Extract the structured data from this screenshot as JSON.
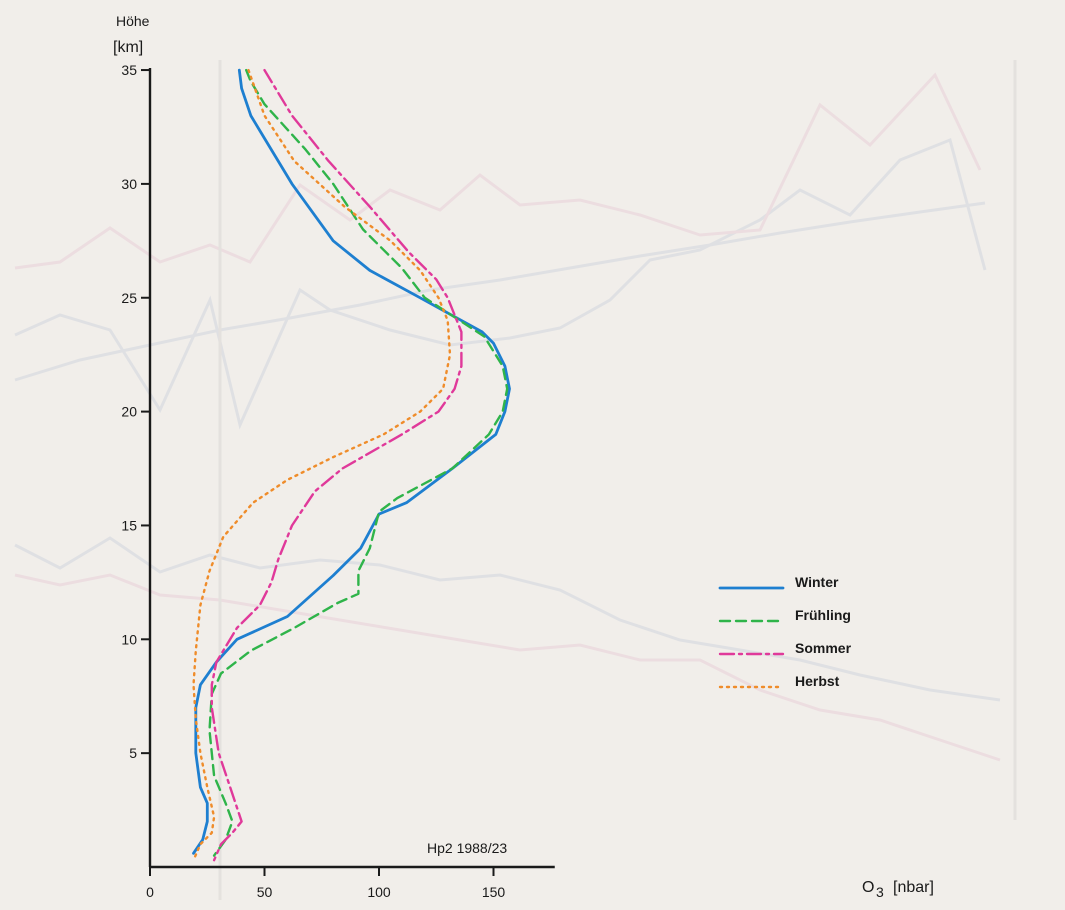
{
  "chart_data": {
    "type": "line",
    "orientation": "vertical-profile",
    "caption": "Hp2  1988/23",
    "ylabel_top": "Höhe",
    "ylabel_unit": "[km]",
    "xlabel_symbol": "O",
    "xlabel_subscript": "3",
    "xlabel_unit": "[nbar]",
    "xlim": [
      0,
      175
    ],
    "ylim": [
      0,
      35
    ],
    "x_ticks": [
      0,
      50,
      100,
      150
    ],
    "y_ticks": [
      5,
      10,
      15,
      20,
      25,
      30,
      35
    ],
    "legend_position": "right-center",
    "series": [
      {
        "name": "Winter",
        "color": "#1e7fd0",
        "dash": "solid",
        "points": [
          [
            39,
            35
          ],
          [
            40,
            34.2
          ],
          [
            44,
            33
          ],
          [
            50,
            32
          ],
          [
            62,
            30
          ],
          [
            80,
            27.5
          ],
          [
            96,
            26.2
          ],
          [
            118,
            25
          ],
          [
            145,
            23.5
          ],
          [
            150,
            23
          ],
          [
            155,
            22
          ],
          [
            157,
            21
          ],
          [
            155,
            20
          ],
          [
            151,
            19
          ],
          [
            132,
            17.5
          ],
          [
            112,
            16
          ],
          [
            100,
            15.5
          ],
          [
            92,
            14
          ],
          [
            80,
            12.8
          ],
          [
            60,
            11
          ],
          [
            38,
            10
          ],
          [
            29,
            9
          ],
          [
            22,
            8
          ],
          [
            20,
            7
          ],
          [
            20,
            5
          ],
          [
            22,
            3.5
          ],
          [
            25,
            2.8
          ],
          [
            25,
            2
          ],
          [
            23,
            1.2
          ],
          [
            19,
            0.6
          ]
        ]
      },
      {
        "name": "Frühling",
        "color": "#2fb44a",
        "dash": "10,6",
        "points": [
          [
            42,
            35
          ],
          [
            44,
            34.5
          ],
          [
            50,
            33.5
          ],
          [
            68,
            31.5
          ],
          [
            80,
            30
          ],
          [
            93,
            28
          ],
          [
            110,
            26.3
          ],
          [
            120,
            25
          ],
          [
            146,
            23.3
          ],
          [
            154,
            22
          ],
          [
            156,
            21
          ],
          [
            154,
            20
          ],
          [
            148,
            19
          ],
          [
            132,
            17.5
          ],
          [
            108,
            16.2
          ],
          [
            100,
            15.6
          ],
          [
            96,
            14
          ],
          [
            91,
            13
          ],
          [
            91,
            12
          ],
          [
            82,
            11.6
          ],
          [
            63,
            10.5
          ],
          [
            44,
            9.5
          ],
          [
            31,
            8.5
          ],
          [
            27,
            7.6
          ],
          [
            26,
            6
          ],
          [
            28,
            4
          ],
          [
            33,
            2.8
          ],
          [
            36,
            2
          ],
          [
            33,
            1.2
          ],
          [
            28,
            0.5
          ]
        ]
      },
      {
        "name": "Sommer",
        "color": "#e0399a",
        "dash": "14,5,3,5",
        "points": [
          [
            50,
            35
          ],
          [
            62,
            33
          ],
          [
            78,
            31
          ],
          [
            96,
            29
          ],
          [
            113,
            27
          ],
          [
            125,
            25.8
          ],
          [
            130,
            25
          ],
          [
            136,
            23.5
          ],
          [
            136,
            22
          ],
          [
            133,
            21
          ],
          [
            126,
            20
          ],
          [
            110,
            19
          ],
          [
            84,
            17.5
          ],
          [
            72,
            16.5
          ],
          [
            62,
            15
          ],
          [
            56,
            13.5
          ],
          [
            53,
            12.5
          ],
          [
            48,
            11.5
          ],
          [
            38,
            10.5
          ],
          [
            29,
            9
          ],
          [
            27,
            8
          ],
          [
            27,
            7
          ],
          [
            30,
            5
          ],
          [
            35,
            3.5
          ],
          [
            40,
            2
          ],
          [
            36,
            1.5
          ],
          [
            31,
            1
          ],
          [
            28,
            0.3
          ]
        ]
      },
      {
        "name": "Herbst",
        "color": "#ef8c2a",
        "dash": "2,5",
        "points": [
          [
            43,
            35
          ],
          [
            50,
            33
          ],
          [
            63,
            31
          ],
          [
            85,
            29
          ],
          [
            105,
            27.5
          ],
          [
            118,
            26.2
          ],
          [
            126,
            25
          ],
          [
            130,
            24
          ],
          [
            131,
            22.5
          ],
          [
            128,
            21
          ],
          [
            118,
            20
          ],
          [
            102,
            19
          ],
          [
            80,
            18
          ],
          [
            60,
            17
          ],
          [
            45,
            16
          ],
          [
            32,
            14.5
          ],
          [
            26,
            13
          ],
          [
            22,
            11.5
          ],
          [
            20,
            9.5
          ],
          [
            19,
            8
          ],
          [
            20,
            6.5
          ],
          [
            22,
            5
          ],
          [
            25,
            3.5
          ],
          [
            28,
            2.2
          ],
          [
            27,
            1.5
          ],
          [
            22,
            1
          ],
          [
            19,
            0.3
          ]
        ]
      }
    ]
  }
}
